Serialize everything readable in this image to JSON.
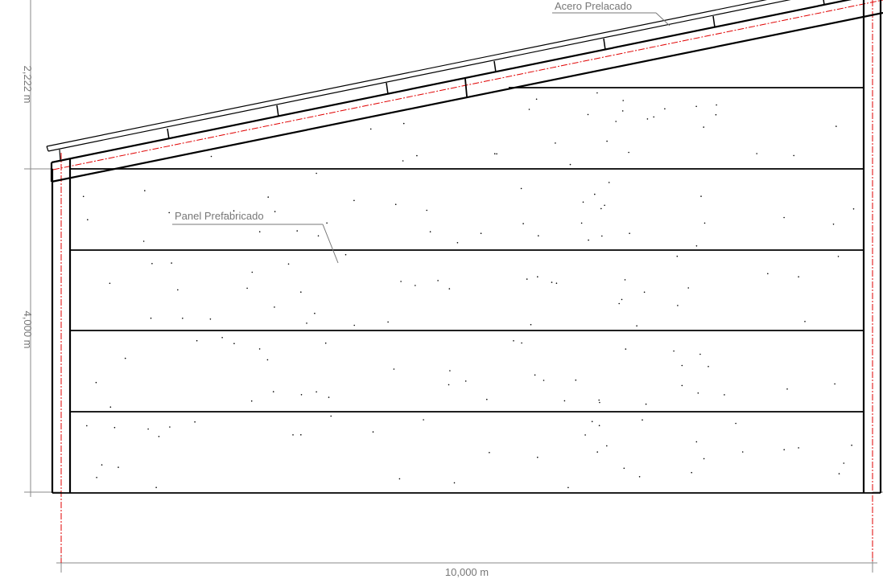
{
  "drawing": {
    "labels": {
      "roof_material": "Acero Prelacado",
      "wall_material": "Panel Prefabricado"
    },
    "dimensions": {
      "height_upper": "2,222 m",
      "height_lower": "4,000 m",
      "width": "10,000 m"
    },
    "colors": {
      "line": "#000000",
      "dimension": "#8a8a8a",
      "label_text": "#777777",
      "axis_dashed": "#e00000"
    }
  }
}
